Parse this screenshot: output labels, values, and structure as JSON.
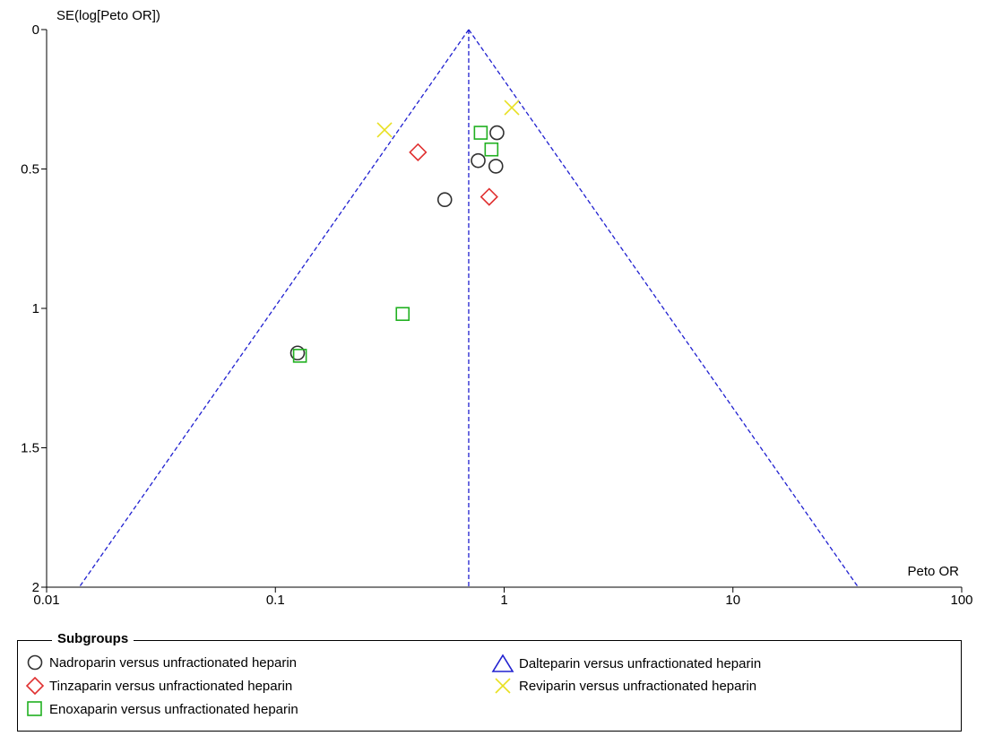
{
  "chart_data": {
    "type": "scatter",
    "xlabel": "Peto OR",
    "ylabel": "SE(log[Peto OR])",
    "xscale": "log",
    "xlim": [
      0.01,
      100
    ],
    "ylim": [
      0,
      2
    ],
    "y_inverted": true,
    "x_ticks": [
      "0.01",
      "0.1",
      "1",
      "10",
      "100"
    ],
    "y_ticks": [
      "0",
      "0.5",
      "1",
      "1.5",
      "2"
    ],
    "pooled_estimate": 0.7,
    "funnel_limits_color": "#2020d0",
    "legend": {
      "title": "Subgroups",
      "placement": "bottom"
    },
    "series": [
      {
        "name": "Nadroparin versus unfractionated heparin",
        "marker": "circle",
        "color": "#303030",
        "points": [
          [
            0.93,
            0.37
          ],
          [
            0.77,
            0.47
          ],
          [
            0.92,
            0.49
          ],
          [
            0.55,
            0.61
          ],
          [
            0.125,
            1.16
          ]
        ]
      },
      {
        "name": "Dalteparin versus unfractionated heparin",
        "marker": "triangle",
        "color": "#2020d0",
        "points": []
      },
      {
        "name": "Tinzaparin versus unfractionated heparin",
        "marker": "diamond",
        "color": "#e03030",
        "points": [
          [
            0.42,
            0.44
          ],
          [
            0.86,
            0.6
          ]
        ]
      },
      {
        "name": "Reviparin versus unfractionated heparin",
        "marker": "x",
        "color": "#e8e020",
        "points": [
          [
            0.3,
            0.36
          ],
          [
            1.08,
            0.28
          ]
        ]
      },
      {
        "name": "Enoxaparin versus unfractionated heparin",
        "marker": "square",
        "color": "#20b020",
        "points": [
          [
            0.79,
            0.37
          ],
          [
            0.88,
            0.43
          ],
          [
            0.36,
            1.02
          ],
          [
            0.128,
            1.17
          ]
        ]
      }
    ]
  }
}
